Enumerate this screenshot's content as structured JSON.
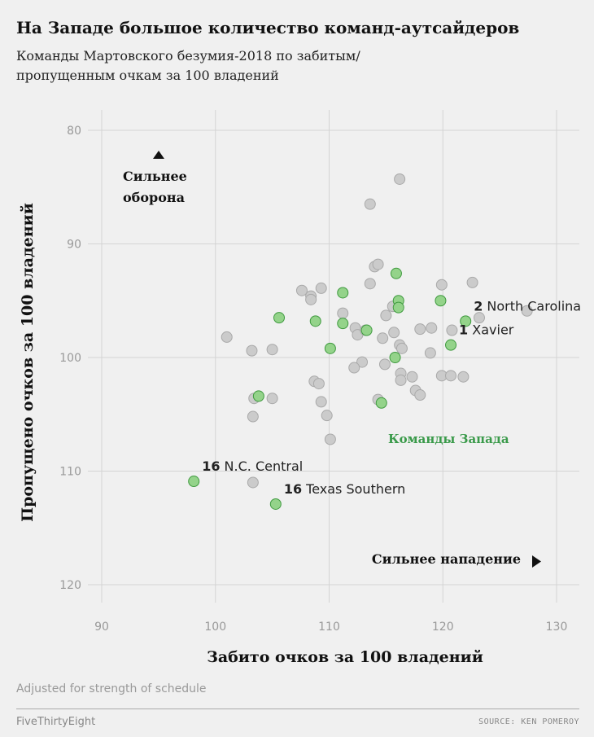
{
  "header": {
    "title": "На Западе большое количество команд-аутсайдеров",
    "subtitle": "Команды Мартовского безумия-2018 по забитым/пропущенным очкам за 100 владений"
  },
  "footer": {
    "note": "Adjusted for strength of schedule",
    "brand": "FiveThirtyEight",
    "source": "SOURCE: KEN POMEROY"
  },
  "colors": {
    "background": "#f0f0f0",
    "grid": "#d4d4d4",
    "other_fill": "#cbcbcb",
    "other_stroke": "#a9a9a9",
    "west_fill": "#94d38a",
    "west_stroke": "#3f9a3f",
    "west_label": "#3a9a4a"
  },
  "chart_data": {
    "type": "scatter",
    "xlabel": "Забито очков за 100 владений",
    "ylabel": "Пропущено очков за 100 владений",
    "xlim": [
      90,
      130
    ],
    "ylim": [
      80,
      120
    ],
    "y_inverted": true,
    "x_ticks": [
      90,
      100,
      110,
      120,
      130
    ],
    "y_ticks": [
      80,
      90,
      100,
      110,
      120
    ],
    "grid": true,
    "annotations": {
      "defense": [
        "Сильнее",
        "оборона"
      ],
      "offense": "Сильнее нападение",
      "west_teams": "Команды Запада"
    },
    "series": [
      {
        "name": "Остальные команды",
        "points": [
          [
            116.2,
            84.3
          ],
          [
            113.6,
            86.5
          ],
          [
            114.0,
            92.0
          ],
          [
            114.3,
            91.8
          ],
          [
            113.6,
            93.5
          ],
          [
            107.6,
            94.1
          ],
          [
            108.4,
            94.6
          ],
          [
            108.4,
            94.9
          ],
          [
            109.3,
            93.9
          ],
          [
            119.9,
            93.6
          ],
          [
            122.6,
            93.4
          ],
          [
            123.2,
            96.5
          ],
          [
            127.4,
            95.9
          ],
          [
            115.6,
            95.5
          ],
          [
            115.0,
            96.3
          ],
          [
            111.2,
            96.1
          ],
          [
            112.3,
            97.4
          ],
          [
            112.5,
            98.0
          ],
          [
            113.2,
            97.6
          ],
          [
            115.7,
            97.8
          ],
          [
            114.7,
            98.3
          ],
          [
            116.2,
            98.9
          ],
          [
            116.4,
            99.2
          ],
          [
            118.0,
            97.5
          ],
          [
            119.0,
            97.4
          ],
          [
            120.8,
            97.6
          ],
          [
            101.0,
            98.2
          ],
          [
            103.2,
            99.4
          ],
          [
            105.0,
            99.3
          ],
          [
            112.9,
            100.4
          ],
          [
            112.2,
            100.9
          ],
          [
            114.9,
            100.6
          ],
          [
            116.3,
            101.4
          ],
          [
            116.3,
            102.0
          ],
          [
            117.3,
            101.7
          ],
          [
            118.9,
            99.6
          ],
          [
            119.9,
            101.6
          ],
          [
            120.7,
            101.6
          ],
          [
            121.8,
            101.7
          ],
          [
            108.7,
            102.1
          ],
          [
            109.1,
            102.3
          ],
          [
            117.6,
            102.9
          ],
          [
            118.0,
            103.3
          ],
          [
            103.4,
            103.6
          ],
          [
            105.0,
            103.6
          ],
          [
            109.3,
            103.9
          ],
          [
            114.3,
            103.7
          ],
          [
            109.8,
            105.1
          ],
          [
            103.3,
            105.2
          ],
          [
            110.1,
            107.2
          ],
          [
            103.3,
            111.0
          ]
        ]
      },
      {
        "name": "Команды Запада",
        "points": [
          [
            115.9,
            92.6
          ],
          [
            111.2,
            94.3
          ],
          [
            105.6,
            96.5
          ],
          [
            108.8,
            96.8
          ],
          [
            111.2,
            97.0
          ],
          [
            113.3,
            97.6
          ],
          [
            116.1,
            95.0
          ],
          [
            116.1,
            95.6
          ],
          [
            119.8,
            95.0
          ],
          [
            122.0,
            96.8
          ],
          [
            120.7,
            98.9
          ],
          [
            110.1,
            99.2
          ],
          [
            115.8,
            100.0
          ],
          [
            103.8,
            103.4
          ],
          [
            114.6,
            104.0
          ],
          [
            98.1,
            110.9
          ],
          [
            105.3,
            112.9
          ]
        ]
      }
    ],
    "labels": [
      {
        "seed": "2",
        "team": "North Carolina",
        "x": 122.0,
        "y": 96.8
      },
      {
        "seed": "1",
        "team": "Xavier",
        "x": 120.7,
        "y": 98.9
      },
      {
        "seed": "16",
        "team": "N.C. Central",
        "x": 98.1,
        "y": 110.9
      },
      {
        "seed": "16",
        "team": "Texas Southern",
        "x": 105.3,
        "y": 112.9
      }
    ]
  }
}
